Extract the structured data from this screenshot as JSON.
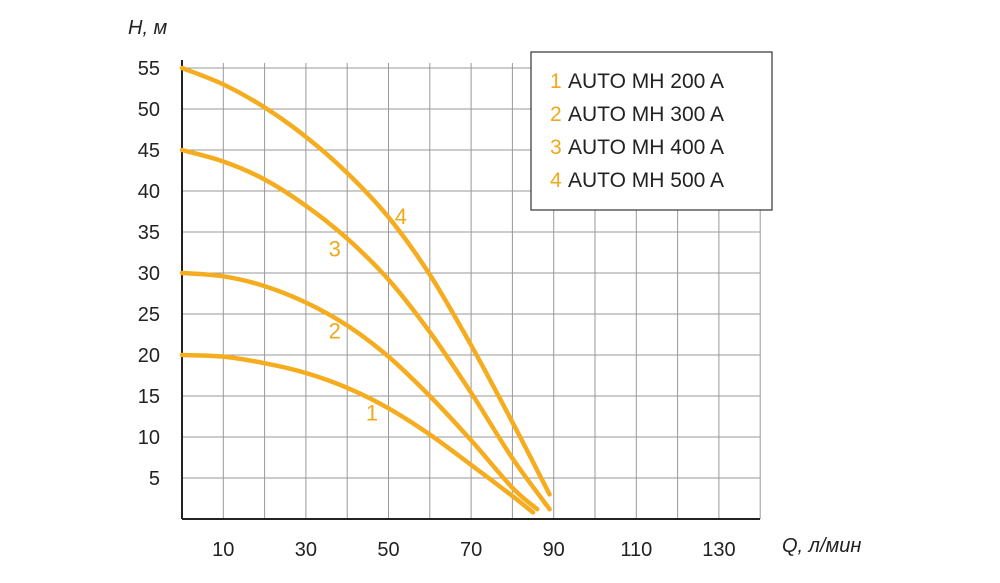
{
  "chart_data": {
    "type": "line",
    "xlabel": "Q, л/мин",
    "ylabel": "H, м",
    "xlim": [
      0,
      140
    ],
    "ylim": [
      0,
      55
    ],
    "x_ticks": [
      10,
      30,
      50,
      70,
      90,
      110,
      130
    ],
    "y_ticks": [
      5,
      10,
      15,
      20,
      25,
      30,
      35,
      40,
      45,
      50,
      55
    ],
    "x_grid_step": 10,
    "y_grid_step": 5,
    "grid": true,
    "legend_position": "top-right",
    "colors": {
      "curve": "#f5ad1f",
      "label": "#f0a91a",
      "grid": "#999999",
      "axis": "#222222"
    },
    "series": [
      {
        "name": "AUTO MH 200 A",
        "legend_number": "1",
        "curve_label": "1",
        "label_at": [
          46,
          12
        ],
        "x": [
          0,
          10,
          20,
          30,
          40,
          50,
          60,
          70,
          80,
          85
        ],
        "y": [
          20,
          19.8,
          19.0,
          17.8,
          16.0,
          13.5,
          10.3,
          6.6,
          2.8,
          0.8
        ]
      },
      {
        "name": "AUTO MH 300 A",
        "legend_number": "2",
        "curve_label": "2",
        "label_at": [
          37,
          22
        ],
        "x": [
          0,
          10,
          20,
          30,
          40,
          50,
          60,
          70,
          80,
          86
        ],
        "y": [
          30,
          29.6,
          28.4,
          26.4,
          23.6,
          19.8,
          15.0,
          9.6,
          3.8,
          1.2
        ]
      },
      {
        "name": "AUTO MH 400 A",
        "legend_number": "3",
        "curve_label": "3",
        "label_at": [
          37,
          32
        ],
        "x": [
          0,
          10,
          20,
          30,
          40,
          50,
          60,
          70,
          80,
          89
        ],
        "y": [
          45,
          43.6,
          41.4,
          38.2,
          34.2,
          29.2,
          22.8,
          15.4,
          7.4,
          1.2
        ]
      },
      {
        "name": "AUTO MH 500 A",
        "legend_number": "4",
        "curve_label": "4",
        "label_at": [
          53,
          36
        ],
        "x": [
          0,
          10,
          20,
          30,
          40,
          50,
          60,
          70,
          80,
          89
        ],
        "y": [
          55,
          53.0,
          50.2,
          46.6,
          42.2,
          36.8,
          29.8,
          21.2,
          11.8,
          3.0
        ]
      }
    ]
  }
}
